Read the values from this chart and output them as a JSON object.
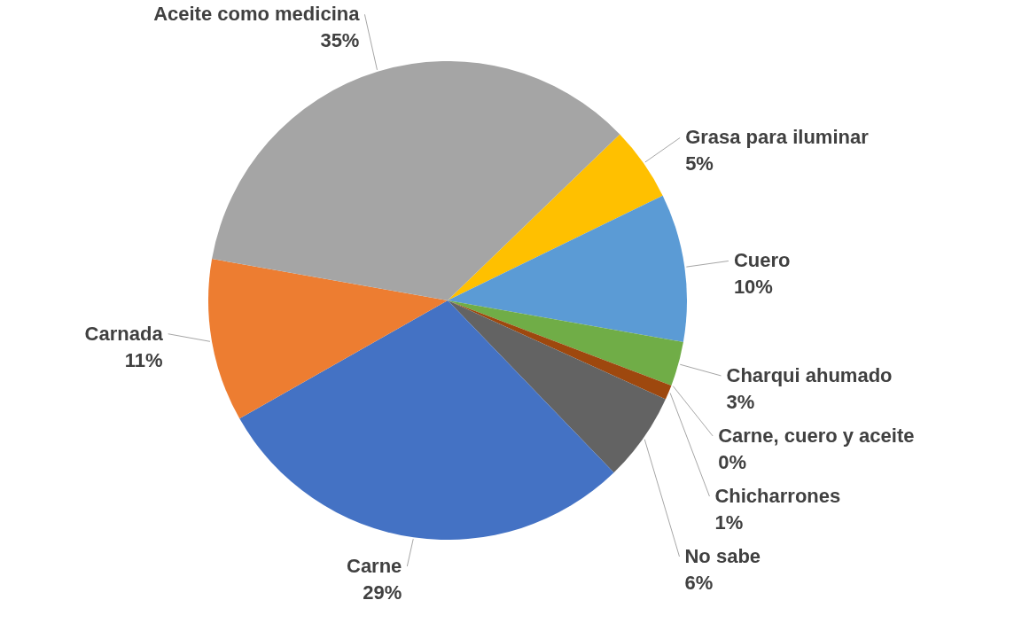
{
  "chart_data": {
    "type": "pie",
    "categories": [
      "Grasa para iluminar",
      "Cuero",
      "Charqui ahumado",
      "Carne, cuero y aceite",
      "Chicharrones",
      "No sabe",
      "Carne",
      "Carnada",
      "Aceite como medicina"
    ],
    "values": [
      5,
      10,
      3,
      0,
      1,
      6,
      29,
      11,
      35
    ],
    "value_labels": [
      "5%",
      "10%",
      "3%",
      "0%",
      "1%",
      "6%",
      "29%",
      "11%",
      "35%"
    ],
    "colors": [
      "#ffc000",
      "#5b9bd5",
      "#70ad47",
      "#264478",
      "#9e480e",
      "#636363",
      "#4472c4",
      "#ed7d31",
      "#a5a5a5"
    ],
    "legend": false
  }
}
